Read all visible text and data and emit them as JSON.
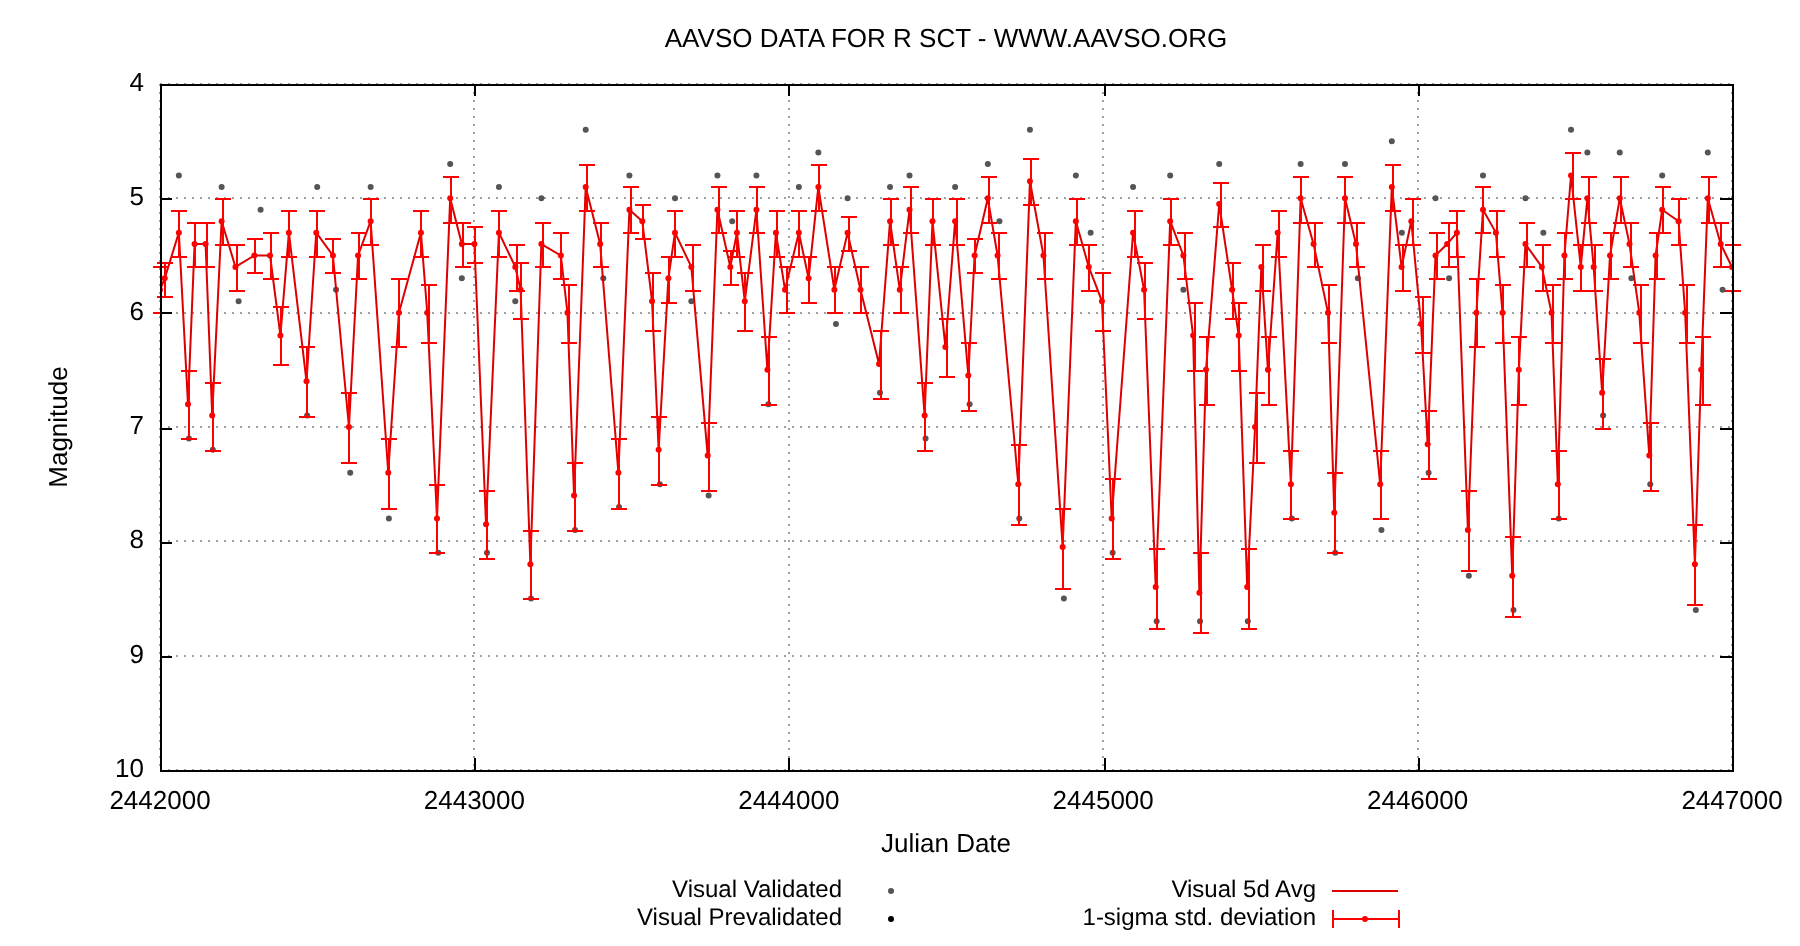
{
  "chart_data": {
    "type": "scatter",
    "title": "AAVSO DATA FOR R SCT - WWW.AAVSO.ORG",
    "xlabel": "Julian Date",
    "ylabel": "Magnitude",
    "xlim": [
      2442000,
      2447000
    ],
    "xticks": [
      2442000,
      2443000,
      2444000,
      2445000,
      2446000,
      2447000
    ],
    "ylim": [
      10,
      4
    ],
    "yticks": [
      4,
      5,
      6,
      7,
      8,
      9,
      10
    ],
    "grid": true,
    "legend": "bottom",
    "series": [
      {
        "name": "Visual Validated",
        "type": "scatter",
        "color": "#555555",
        "marker": "circle",
        "x": [
          2442092,
          2442168,
          2442468,
          2442605,
          2442728,
          2442885,
          2443040,
          2443180,
          2443320,
          2443460,
          2443590,
          2443745,
          2443935,
          2444290,
          2444435,
          2444575,
          2444733,
          2444875,
          2445030,
          2445170,
          2445308,
          2445460,
          2445600,
          2445738,
          2445885,
          2446035,
          2446163,
          2446305,
          2446449,
          2446590,
          2446740,
          2446885,
          2442060,
          2442196,
          2442500,
          2442670,
          2442923,
          2443078,
          2443213,
          2443354,
          2443493,
          2443638,
          2443773,
          2443897,
          2444032,
          2444094,
          2444187,
          2444322,
          2444384,
          2444529,
          2444633,
          2444767,
          2444913,
          2445095,
          2445213,
          2445369,
          2445628,
          2445769,
          2445918,
          2446057,
          2446208,
          2446343,
          2446488,
          2446540,
          2446643,
          2446778,
          2446923,
          2442250,
          2442320,
          2442560,
          2442960,
          2443130,
          2443410,
          2443690,
          2443820,
          2444150,
          2444670,
          2444960,
          2445255,
          2445810,
          2445950,
          2446100,
          2446400,
          2446680,
          2446970
        ],
        "values": [
          7.1,
          7.2,
          6.9,
          7.4,
          7.8,
          8.1,
          8.1,
          8.5,
          7.9,
          7.7,
          7.5,
          7.6,
          6.8,
          6.7,
          7.1,
          6.8,
          7.8,
          8.5,
          8.1,
          8.7,
          8.7,
          8.7,
          7.8,
          8.1,
          7.9,
          7.4,
          8.3,
          8.6,
          7.8,
          6.9,
          7.5,
          8.6,
          4.8,
          4.9,
          4.9,
          4.9,
          4.7,
          4.9,
          5.0,
          4.4,
          4.8,
          5.0,
          4.8,
          4.8,
          4.9,
          4.6,
          5.0,
          4.9,
          4.8,
          4.9,
          4.7,
          4.4,
          4.8,
          4.9,
          4.8,
          4.7,
          4.7,
          4.7,
          4.5,
          5.0,
          4.8,
          5.0,
          4.4,
          4.6,
          4.6,
          4.8,
          4.6,
          5.9,
          5.1,
          5.8,
          5.7,
          5.9,
          5.7,
          5.9,
          5.2,
          6.1,
          5.2,
          5.3,
          5.8,
          5.7,
          5.3,
          5.7,
          5.3,
          5.7,
          5.8
        ]
      },
      {
        "name": "Visual Prevalidated",
        "type": "scatter",
        "color": "#000000",
        "marker": "circle"
      },
      {
        "name": "Visual 5d Avg",
        "type": "line",
        "color": "#dd0000",
        "marker": "none",
        "line_style": "solid",
        "x": [
          2442000,
          2442015,
          2442060,
          2442089,
          2442110,
          2442145,
          2442166,
          2442196,
          2442240,
          2442300,
          2442350,
          2442383,
          2442410,
          2442466,
          2442497,
          2442550,
          2442601,
          2442630,
          2442670,
          2442726,
          2442760,
          2442830,
          2442850,
          2442881,
          2442923,
          2442960,
          2443000,
          2443037,
          2443078,
          2443130,
          2443147,
          2443178,
          2443213,
          2443275,
          2443296,
          2443317,
          2443354,
          2443400,
          2443458,
          2443493,
          2443534,
          2443565,
          2443586,
          2443617,
          2443638,
          2443690,
          2443742,
          2443773,
          2443814,
          2443835,
          2443860,
          2443897,
          2443932,
          2443959,
          2443988,
          2444032,
          2444063,
          2444094,
          2444145,
          2444187,
          2444228,
          2444287,
          2444322,
          2444353,
          2444384,
          2444432,
          2444457,
          2444498,
          2444529,
          2444571,
          2444591,
          2444633,
          2444664,
          2444730,
          2444767,
          2444810,
          2444871,
          2444913,
          2444954,
          2444996,
          2445027,
          2445095,
          2445130,
          2445167,
          2445213,
          2445255,
          2445286,
          2445306,
          2445327,
          2445369,
          2445410,
          2445431,
          2445458,
          2445483,
          2445503,
          2445524,
          2445555,
          2445597,
          2445628,
          2445669,
          2445715,
          2445735,
          2445769,
          2445804,
          2445881,
          2445918,
          2445949,
          2445980,
          2446011,
          2446032,
          2446057,
          2446094,
          2446125,
          2446160,
          2446187,
          2446208,
          2446249,
          2446270,
          2446301,
          2446322,
          2446343,
          2446395,
          2446426,
          2446446,
          2446467,
          2446488,
          2446519,
          2446540,
          2446560,
          2446587,
          2446612,
          2446643,
          2446674,
          2446705,
          2446737,
          2446757,
          2446778,
          2446830,
          2446851,
          2446882,
          2446902,
          2446923,
          2446964,
          2447000
        ],
        "values": [
          5.8,
          5.7,
          5.3,
          6.8,
          5.4,
          5.4,
          6.9,
          5.2,
          5.6,
          5.5,
          5.5,
          6.2,
          5.3,
          6.6,
          5.3,
          5.5,
          7.0,
          5.5,
          5.2,
          7.4,
          6.0,
          5.3,
          6.0,
          7.8,
          5.0,
          5.4,
          5.4,
          7.85,
          5.3,
          5.6,
          5.8,
          8.2,
          5.4,
          5.5,
          6.0,
          7.6,
          4.9,
          5.4,
          7.4,
          5.1,
          5.2,
          5.9,
          7.2,
          5.7,
          5.3,
          5.6,
          7.25,
          5.1,
          5.6,
          5.3,
          5.9,
          5.1,
          6.5,
          5.3,
          5.8,
          5.3,
          5.7,
          4.9,
          5.8,
          5.3,
          5.8,
          6.45,
          5.2,
          5.8,
          5.1,
          6.9,
          5.2,
          6.3,
          5.2,
          6.55,
          5.5,
          5.0,
          5.5,
          7.5,
          4.85,
          5.5,
          8.05,
          5.2,
          5.6,
          5.9,
          7.8,
          5.3,
          5.8,
          8.4,
          5.2,
          5.5,
          6.2,
          8.45,
          6.5,
          5.05,
          5.8,
          6.2,
          8.4,
          7.0,
          5.6,
          6.5,
          5.3,
          7.5,
          5.0,
          5.4,
          6.0,
          7.75,
          5.0,
          5.4,
          7.5,
          4.9,
          5.6,
          5.2,
          6.1,
          7.15,
          5.5,
          5.4,
          5.3,
          7.9,
          6.0,
          5.1,
          5.3,
          6.0,
          8.3,
          6.5,
          5.4,
          5.6,
          6.0,
          7.5,
          5.5,
          4.8,
          5.6,
          5.0,
          5.6,
          6.7,
          5.5,
          5.0,
          5.4,
          6.0,
          7.25,
          5.5,
          5.1,
          5.2,
          6.0,
          8.2,
          6.5,
          5.0,
          5.4,
          5.6
        ]
      },
      {
        "name": "1-sigma std. deviation",
        "type": "scatter",
        "color": "#ff0000",
        "marker": "circle",
        "x": [
          2442000,
          2442015,
          2442060,
          2442089,
          2442110,
          2442145,
          2442166,
          2442196,
          2442240,
          2442300,
          2442350,
          2442383,
          2442410,
          2442466,
          2442497,
          2442550,
          2442601,
          2442630,
          2442670,
          2442726,
          2442760,
          2442830,
          2442850,
          2442881,
          2442923,
          2442960,
          2443000,
          2443037,
          2443078,
          2443130,
          2443147,
          2443178,
          2443213,
          2443275,
          2443296,
          2443317,
          2443354,
          2443400,
          2443458,
          2443493,
          2443534,
          2443565,
          2443586,
          2443617,
          2443638,
          2443690,
          2443742,
          2443773,
          2443814,
          2443835,
          2443860,
          2443897,
          2443932,
          2443959,
          2443988,
          2444032,
          2444063,
          2444094,
          2444145,
          2444187,
          2444228,
          2444287,
          2444322,
          2444353,
          2444384,
          2444432,
          2444457,
          2444498,
          2444529,
          2444571,
          2444591,
          2444633,
          2444664,
          2444730,
          2444767,
          2444810,
          2444871,
          2444913,
          2444954,
          2444996,
          2445027,
          2445095,
          2445130,
          2445167,
          2445213,
          2445255,
          2445286,
          2445306,
          2445327,
          2445369,
          2445410,
          2445431,
          2445458,
          2445483,
          2445503,
          2445524,
          2445555,
          2445597,
          2445628,
          2445669,
          2445715,
          2445735,
          2445769,
          2445804,
          2445881,
          2445918,
          2445949,
          2445980,
          2446011,
          2446032,
          2446057,
          2446094,
          2446125,
          2446160,
          2446187,
          2446208,
          2446249,
          2446270,
          2446301,
          2446322,
          2446343,
          2446395,
          2446426,
          2446446,
          2446467,
          2446488,
          2446519,
          2446540,
          2446560,
          2446587,
          2446612,
          2446643,
          2446674,
          2446705,
          2446737,
          2446757,
          2446778,
          2446830,
          2446851,
          2446882,
          2446902,
          2446923,
          2446964,
          2447000
        ],
        "values": [
          5.8,
          5.7,
          5.3,
          6.8,
          5.4,
          5.4,
          6.9,
          5.2,
          5.6,
          5.5,
          5.5,
          6.2,
          5.3,
          6.6,
          5.3,
          5.5,
          7.0,
          5.5,
          5.2,
          7.4,
          6.0,
          5.3,
          6.0,
          7.8,
          5.0,
          5.4,
          5.4,
          7.85,
          5.3,
          5.6,
          5.8,
          8.2,
          5.4,
          5.5,
          6.0,
          7.6,
          4.9,
          5.4,
          7.4,
          5.1,
          5.2,
          5.9,
          7.2,
          5.7,
          5.3,
          5.6,
          7.25,
          5.1,
          5.6,
          5.3,
          5.9,
          5.1,
          6.5,
          5.3,
          5.8,
          5.3,
          5.7,
          4.9,
          5.8,
          5.3,
          5.8,
          6.45,
          5.2,
          5.8,
          5.1,
          6.9,
          5.2,
          6.3,
          5.2,
          6.55,
          5.5,
          5.0,
          5.5,
          7.5,
          4.85,
          5.5,
          8.05,
          5.2,
          5.6,
          5.9,
          7.8,
          5.3,
          5.8,
          8.4,
          5.2,
          5.5,
          6.2,
          8.45,
          6.5,
          5.05,
          5.8,
          6.2,
          8.4,
          7.0,
          5.6,
          6.5,
          5.3,
          7.5,
          5.0,
          5.4,
          6.0,
          7.75,
          5.0,
          5.4,
          7.5,
          4.9,
          5.6,
          5.2,
          6.1,
          7.15,
          5.5,
          5.4,
          5.3,
          7.9,
          6.0,
          5.1,
          5.3,
          6.0,
          8.3,
          6.5,
          5.4,
          5.6,
          6.0,
          7.5,
          5.5,
          4.8,
          5.6,
          5.0,
          5.6,
          6.7,
          5.5,
          5.0,
          5.4,
          6.0,
          7.25,
          5.5,
          5.1,
          5.2,
          6.0,
          8.2,
          6.5,
          5.0,
          5.4,
          5.6
        ],
        "errors": [
          0.2,
          0.15,
          0.2,
          0.3,
          0.2,
          0.2,
          0.3,
          0.2,
          0.2,
          0.15,
          0.2,
          0.25,
          0.2,
          0.3,
          0.2,
          0.15,
          0.3,
          0.2,
          0.2,
          0.3,
          0.3,
          0.2,
          0.25,
          0.3,
          0.2,
          0.2,
          0.15,
          0.3,
          0.2,
          0.2,
          0.25,
          0.3,
          0.2,
          0.2,
          0.25,
          0.3,
          0.2,
          0.2,
          0.3,
          0.2,
          0.15,
          0.25,
          0.3,
          0.2,
          0.2,
          0.2,
          0.3,
          0.2,
          0.15,
          0.2,
          0.25,
          0.2,
          0.3,
          0.2,
          0.2,
          0.2,
          0.2,
          0.2,
          0.2,
          0.15,
          0.2,
          0.3,
          0.2,
          0.2,
          0.2,
          0.3,
          0.2,
          0.25,
          0.2,
          0.3,
          0.15,
          0.2,
          0.2,
          0.35,
          0.2,
          0.2,
          0.35,
          0.2,
          0.2,
          0.25,
          0.35,
          0.2,
          0.25,
          0.35,
          0.2,
          0.2,
          0.3,
          0.35,
          0.3,
          0.2,
          0.25,
          0.3,
          0.35,
          0.3,
          0.2,
          0.3,
          0.2,
          0.3,
          0.2,
          0.2,
          0.25,
          0.35,
          0.2,
          0.2,
          0.3,
          0.2,
          0.2,
          0.2,
          0.25,
          0.3,
          0.2,
          0.2,
          0.2,
          0.35,
          0.3,
          0.2,
          0.2,
          0.25,
          0.35,
          0.3,
          0.2,
          0.2,
          0.25,
          0.3,
          0.2,
          0.2,
          0.2,
          0.2,
          0.2,
          0.3,
          0.2,
          0.2,
          0.2,
          0.25,
          0.3,
          0.2,
          0.2,
          0.2,
          0.25,
          0.35,
          0.3,
          0.2,
          0.2,
          0.2
        ]
      }
    ]
  }
}
